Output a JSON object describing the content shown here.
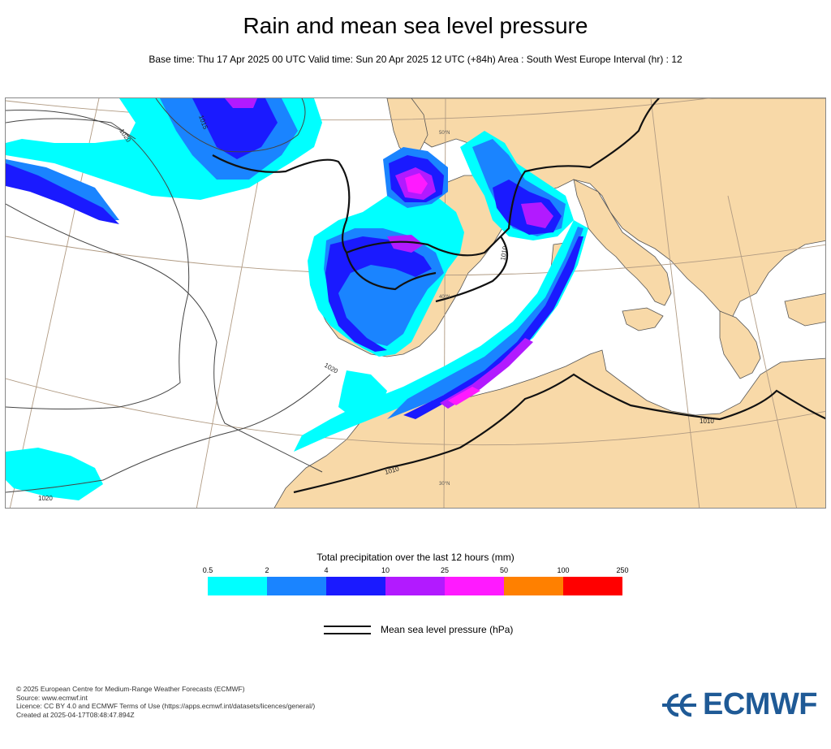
{
  "header": {
    "title": "Rain and mean sea level pressure",
    "subtitle": "Base time: Thu 17 Apr 2025 00 UTC Valid time: Sun 20 Apr 2025 12 UTC (+84h) Area : South West Europe Interval (hr) : 12"
  },
  "map": {
    "isobar_labels": [
      "1015",
      "1020",
      "1020",
      "1010",
      "1020",
      "1010",
      "1010"
    ],
    "graticule_labels": [
      "50°N",
      "40°N",
      "30°N"
    ]
  },
  "legend": {
    "title": "Total precipitation over the last 12 hours (mm)",
    "ticks": [
      "0.5",
      "2",
      "4",
      "10",
      "25",
      "50",
      "100",
      "250"
    ],
    "colors": [
      "#00ffff",
      "#1a84ff",
      "#1a1aff",
      "#b21aff",
      "#ff1aff",
      "#ff8000",
      "#ff0000"
    ],
    "pressure_label": "Mean sea level pressure (hPa)"
  },
  "footer": {
    "line1": "© 2025 European Centre for Medium-Range Weather Forecasts (ECMWF)",
    "line2": "Source: www.ecmwf.int",
    "line3": "Licence: CC BY 4.0 and ECMWF Terms of Use (https://apps.ecmwf.int/datasets/licences/general/)",
    "line4": "Created at 2025-04-17T08:48:47.894Z"
  },
  "logo": {
    "text": "ECMWF",
    "color": "#1f5a96"
  }
}
